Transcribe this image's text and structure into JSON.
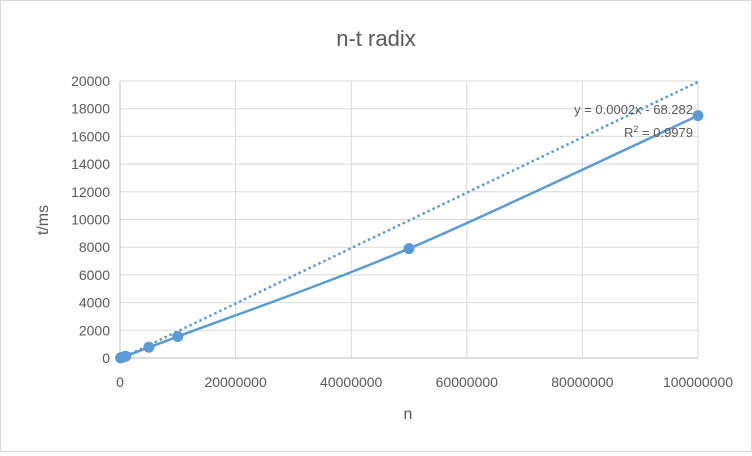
{
  "chart_data": {
    "type": "scatter",
    "title": "n-t radix",
    "xlabel": "n",
    "ylabel": "t/ms",
    "xlim": [
      0,
      100000000
    ],
    "ylim": [
      0,
      20000
    ],
    "x_ticks": [
      "0",
      "20000000",
      "40000000",
      "60000000",
      "80000000",
      "100000000"
    ],
    "y_ticks": [
      "0",
      "2000",
      "4000",
      "6000",
      "8000",
      "10000",
      "12000",
      "14000",
      "16000",
      "18000",
      "20000"
    ],
    "grid": true,
    "series": [
      {
        "points": [
          {
            "x": 100000,
            "y": 10
          },
          {
            "x": 500000,
            "y": 60
          },
          {
            "x": 1000000,
            "y": 130
          },
          {
            "x": 5000000,
            "y": 780
          },
          {
            "x": 10000000,
            "y": 1550
          },
          {
            "x": 50000000,
            "y": 7900
          },
          {
            "x": 100000000,
            "y": 17500
          }
        ],
        "color": "#5b9bd5",
        "smooth_line": true
      }
    ],
    "trendline": {
      "type": "linear",
      "slope": 0.0002,
      "intercept": -68.282,
      "equation": "y = 0.0002x - 68.282",
      "r2_label": "R",
      "r2_sup": "2",
      "r2_value": " = 0.9979",
      "style": "dotted",
      "color": "#5b9bd5"
    },
    "colors": {
      "series": "#5b9bd5",
      "grid": "#d9d9d9",
      "axis": "#bfbfbf",
      "text": "#595959"
    }
  }
}
